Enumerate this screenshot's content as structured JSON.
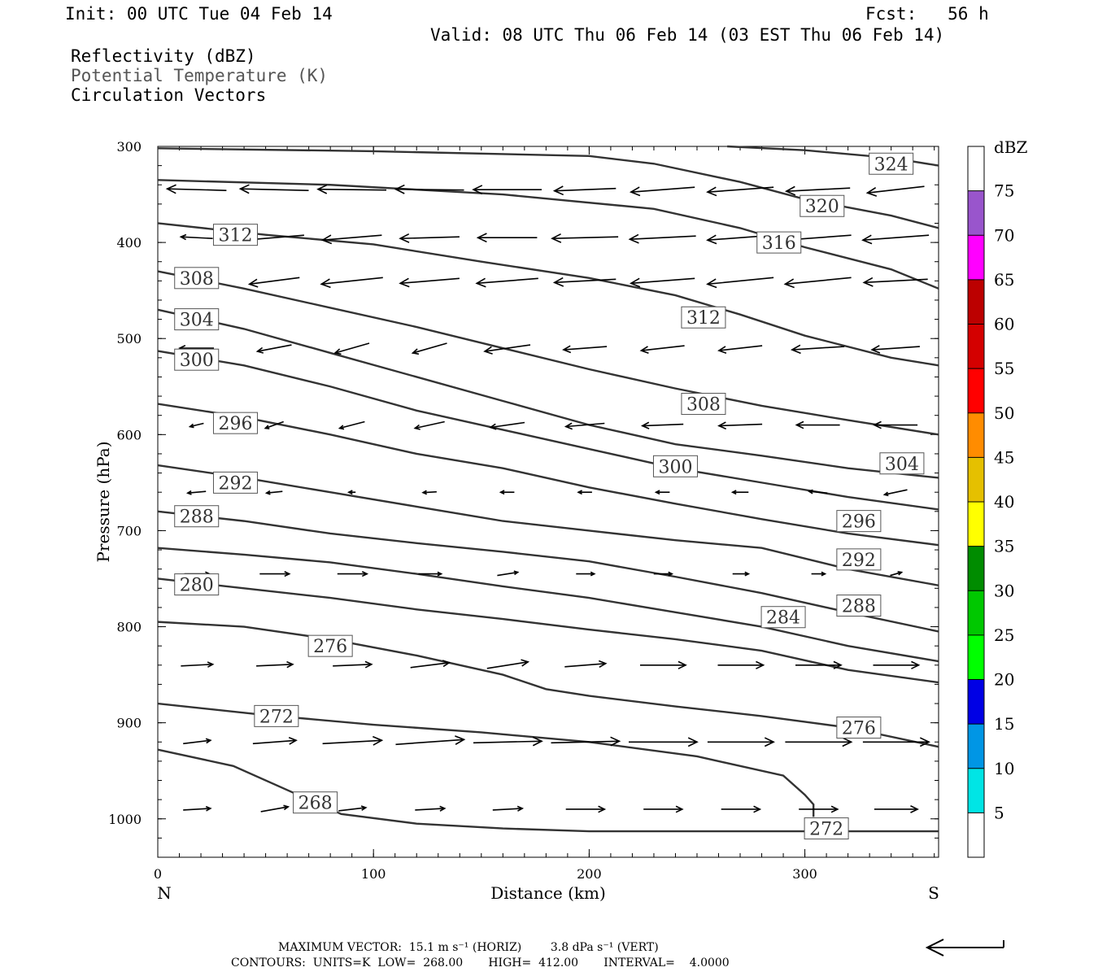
{
  "header": {
    "init": "Init: 00 UTC Tue 04 Feb 14",
    "fcst": "Fcst:   56 h",
    "valid": "Valid: 08 UTC Thu 06 Feb 14 (03 EST Thu 06 Feb 14)",
    "field1": "Reflectivity (dBZ)",
    "field2": "Potential Temperature (K)",
    "field3": "Circulation Vectors"
  },
  "footer": {
    "max_vector": "MAXIMUM VECTOR:  15.1 m s⁻¹ (HORIZ)        3.8 dPa s⁻¹ (VERT)",
    "contours": "CONTOURS:  UNITS=K  LOW=  268.00       HIGH=  412.00       INTERVAL=    4.0000"
  },
  "chart_data": {
    "type": "cross-section",
    "xlabel": "Distance (km)",
    "ylabel": "Pressure (hPa)",
    "xlim": [
      0,
      362
    ],
    "ylim": [
      1040,
      300
    ],
    "x_ticks": [
      0,
      100,
      200,
      300
    ],
    "y_ticks": [
      300,
      400,
      500,
      600,
      700,
      800,
      900,
      1000
    ],
    "left_end_label": "N",
    "right_end_label": "S",
    "colorbar": {
      "title": "dBZ",
      "levels": [
        5,
        10,
        15,
        20,
        25,
        30,
        35,
        40,
        45,
        50,
        55,
        60,
        65,
        70,
        75
      ],
      "colors": [
        "#ffffff",
        "#00e5e5",
        "#0096e5",
        "#0000e5",
        "#00ff00",
        "#00c800",
        "#008c00",
        "#ffff00",
        "#e5c000",
        "#ff8c00",
        "#ff0000",
        "#d40000",
        "#bc0000",
        "#ff00ff",
        "#9955cc",
        "#ffffff"
      ]
    },
    "contours": [
      {
        "level": "324",
        "points": [
          [
            264,
            300
          ],
          [
            300,
            304
          ],
          [
            340,
            312
          ],
          [
            362,
            320
          ]
        ],
        "labels": [
          [
            340,
            318
          ]
        ]
      },
      {
        "level": "320",
        "points": [
          [
            0,
            302
          ],
          [
            100,
            305
          ],
          [
            200,
            310
          ],
          [
            230,
            318
          ],
          [
            270,
            337
          ],
          [
            300,
            355
          ],
          [
            340,
            372
          ],
          [
            362,
            385
          ]
        ],
        "labels": [
          [
            308,
            362
          ]
        ]
      },
      {
        "level": "316",
        "points": [
          [
            0,
            335
          ],
          [
            80,
            340
          ],
          [
            160,
            350
          ],
          [
            230,
            365
          ],
          [
            270,
            385
          ],
          [
            300,
            405
          ],
          [
            340,
            428
          ],
          [
            362,
            448
          ]
        ],
        "labels": [
          [
            288,
            400
          ]
        ]
      },
      {
        "level": "312",
        "points": [
          [
            0,
            380
          ],
          [
            50,
            392
          ],
          [
            100,
            402
          ],
          [
            150,
            420
          ],
          [
            200,
            437
          ],
          [
            240,
            455
          ],
          [
            270,
            475
          ],
          [
            300,
            497
          ],
          [
            340,
            520
          ],
          [
            362,
            528
          ]
        ],
        "labels": [
          [
            36,
            392
          ],
          [
            253,
            478
          ]
        ]
      },
      {
        "level": "308",
        "points": [
          [
            0,
            430
          ],
          [
            40,
            448
          ],
          [
            80,
            468
          ],
          [
            120,
            488
          ],
          [
            160,
            510
          ],
          [
            200,
            532
          ],
          [
            240,
            552
          ],
          [
            280,
            570
          ],
          [
            320,
            585
          ],
          [
            362,
            600
          ]
        ],
        "labels": [
          [
            18,
            437
          ],
          [
            253,
            568
          ]
        ]
      },
      {
        "level": "304",
        "points": [
          [
            0,
            470
          ],
          [
            40,
            490
          ],
          [
            80,
            515
          ],
          [
            120,
            540
          ],
          [
            160,
            565
          ],
          [
            200,
            590
          ],
          [
            240,
            610
          ],
          [
            280,
            622
          ],
          [
            320,
            635
          ],
          [
            362,
            645
          ]
        ],
        "labels": [
          [
            18,
            480
          ],
          [
            345,
            630
          ]
        ]
      },
      {
        "level": "300",
        "points": [
          [
            0,
            513
          ],
          [
            40,
            528
          ],
          [
            80,
            550
          ],
          [
            120,
            575
          ],
          [
            160,
            595
          ],
          [
            200,
            615
          ],
          [
            240,
            635
          ],
          [
            280,
            650
          ],
          [
            320,
            665
          ],
          [
            362,
            678
          ]
        ],
        "labels": [
          [
            18,
            522
          ],
          [
            240,
            633
          ]
        ]
      },
      {
        "level": "296",
        "points": [
          [
            0,
            568
          ],
          [
            40,
            582
          ],
          [
            80,
            600
          ],
          [
            120,
            620
          ],
          [
            160,
            635
          ],
          [
            200,
            655
          ],
          [
            240,
            672
          ],
          [
            280,
            688
          ],
          [
            320,
            703
          ],
          [
            362,
            715
          ]
        ],
        "labels": [
          [
            36,
            588
          ],
          [
            325,
            690
          ]
        ]
      },
      {
        "level": "292",
        "points": [
          [
            0,
            632
          ],
          [
            40,
            645
          ],
          [
            80,
            660
          ],
          [
            120,
            675
          ],
          [
            160,
            690
          ],
          [
            200,
            700
          ],
          [
            240,
            710
          ],
          [
            280,
            718
          ],
          [
            320,
            740
          ],
          [
            362,
            757
          ]
        ],
        "labels": [
          [
            36,
            650
          ],
          [
            325,
            730
          ]
        ]
      },
      {
        "level": "288",
        "points": [
          [
            0,
            680
          ],
          [
            40,
            690
          ],
          [
            80,
            703
          ],
          [
            120,
            713
          ],
          [
            160,
            722
          ],
          [
            200,
            732
          ],
          [
            240,
            748
          ],
          [
            280,
            765
          ],
          [
            320,
            785
          ],
          [
            362,
            805
          ]
        ],
        "labels": [
          [
            18,
            685
          ],
          [
            325,
            778
          ]
        ]
      },
      {
        "level": "284",
        "points": [
          [
            0,
            718
          ],
          [
            40,
            725
          ],
          [
            80,
            733
          ],
          [
            120,
            745
          ],
          [
            160,
            758
          ],
          [
            200,
            770
          ],
          [
            240,
            785
          ],
          [
            280,
            800
          ],
          [
            320,
            820
          ],
          [
            362,
            836
          ]
        ],
        "labels": [
          [
            290,
            790
          ]
        ]
      },
      {
        "level": "280",
        "points": [
          [
            0,
            750
          ],
          [
            40,
            760
          ],
          [
            80,
            770
          ],
          [
            120,
            782
          ],
          [
            160,
            792
          ],
          [
            200,
            803
          ],
          [
            240,
            813
          ],
          [
            280,
            825
          ],
          [
            320,
            845
          ],
          [
            362,
            858
          ]
        ],
        "labels": [
          [
            18,
            756
          ]
        ]
      },
      {
        "level": "276",
        "points": [
          [
            0,
            795
          ],
          [
            40,
            800
          ],
          [
            80,
            813
          ],
          [
            120,
            830
          ],
          [
            160,
            850
          ],
          [
            180,
            865
          ],
          [
            200,
            872
          ],
          [
            240,
            883
          ],
          [
            280,
            893
          ],
          [
            320,
            905
          ],
          [
            362,
            925
          ]
        ],
        "labels": [
          [
            80,
            820
          ],
          [
            325,
            905
          ]
        ]
      },
      {
        "level": "272",
        "points": [
          [
            0,
            880
          ],
          [
            50,
            892
          ],
          [
            100,
            902
          ],
          [
            150,
            910
          ],
          [
            200,
            920
          ],
          [
            250,
            935
          ],
          [
            290,
            955
          ],
          [
            300,
            975
          ],
          [
            304,
            985
          ],
          [
            304,
            998
          ]
        ],
        "labels": [
          [
            55,
            893
          ],
          [
            310,
            1010
          ]
        ]
      },
      {
        "level": "268",
        "points": [
          [
            0,
            928
          ],
          [
            35,
            945
          ],
          [
            60,
            970
          ],
          [
            85,
            995
          ],
          [
            120,
            1005
          ],
          [
            160,
            1010
          ],
          [
            200,
            1013
          ],
          [
            260,
            1013
          ],
          [
            320,
            1013
          ],
          [
            362,
            1013
          ]
        ],
        "labels": [
          [
            73,
            983
          ]
        ]
      }
    ],
    "vectors": [
      {
        "p": 345,
        "u": [
          -2.6,
          -3.0,
          -3.0,
          -3.0,
          -3.0,
          -2.7,
          -2.8,
          -2.9,
          -2.8,
          -2.5
        ],
        "w": [
          0.1,
          0.1,
          0.05,
          0.05,
          0,
          -0.15,
          -0.3,
          -0.3,
          -0.2,
          -0.4
        ]
      },
      {
        "p": 395,
        "u": [
          -1.4,
          -2.6,
          -2.6,
          -2.6,
          -2.6,
          -2.9,
          -2.9,
          -2.9,
          -2.9,
          -2.9
        ],
        "w": [
          0.1,
          -0.3,
          -0.3,
          -0.1,
          0,
          -0.1,
          -0.2,
          -0.3,
          -0.3,
          -0.3
        ]
      },
      {
        "p": 440,
        "u": [
          -1.5,
          -2.2,
          -2.7,
          -2.6,
          -2.7,
          -2.7,
          -2.8,
          -2.9,
          -2.9,
          -2.8
        ],
        "w": [
          -0.3,
          -0.4,
          -0.4,
          -0.3,
          -0.3,
          -0.2,
          -0.3,
          -0.4,
          -0.4,
          -0.2
        ]
      },
      {
        "p": 510,
        "u": [
          -1.5,
          -1.5,
          -1.5,
          -1.5,
          -2.0,
          -1.9,
          -1.9,
          -1.9,
          -2.3,
          -2.1
        ],
        "w": [
          0,
          -0.4,
          -0.6,
          -0.6,
          -0.4,
          -0.2,
          -0.3,
          -0.3,
          -0.2,
          -0.2
        ]
      },
      {
        "p": 590,
        "u": [
          -0.6,
          -0.8,
          -1.1,
          -1.3,
          -1.5,
          -1.7,
          -1.8,
          -1.9,
          -1.9,
          -1.9
        ],
        "w": [
          -0.2,
          -0.4,
          -0.4,
          -0.4,
          -0.3,
          -0.2,
          -0.1,
          -0.1,
          0,
          0
        ]
      },
      {
        "p": 660,
        "u": [
          -0.8,
          -0.7,
          -0.3,
          -0.6,
          -0.6,
          -0.6,
          -0.6,
          -0.7,
          -0.8,
          -1.0
        ],
        "w": [
          -0.1,
          -0.1,
          0,
          -0.05,
          0,
          0,
          0,
          0,
          0.1,
          -0.3
        ]
      },
      {
        "p": 745,
        "u": [
          1.1,
          1.3,
          1.3,
          1.0,
          0.9,
          0.8,
          0.8,
          0.7,
          0.6,
          0.5
        ],
        "w": [
          0,
          0,
          0,
          0,
          0.2,
          0,
          0,
          0,
          0,
          0.2
        ]
      },
      {
        "p": 840,
        "u": [
          1.4,
          1.6,
          1.7,
          1.7,
          1.8,
          1.8,
          2.0,
          2.0,
          2.0,
          2.0
        ],
        "w": [
          0.1,
          0.1,
          0.1,
          0.3,
          0.4,
          0.2,
          0,
          0,
          0,
          0
        ]
      },
      {
        "p": 920,
        "u": [
          1.2,
          1.9,
          2.6,
          3.0,
          3.0,
          3.0,
          3.0,
          2.9,
          2.9,
          2.9
        ],
        "w": [
          0.2,
          0.2,
          0.2,
          0.3,
          0.1,
          0.1,
          0,
          0,
          0,
          0
        ]
      },
      {
        "p": 990,
        "u": [
          1.2,
          1.2,
          1.2,
          1.3,
          1.3,
          1.7,
          1.7,
          1.7,
          1.7,
          1.9
        ],
        "w": [
          0.1,
          0.3,
          0.2,
          0.1,
          0.1,
          0,
          0,
          0,
          0,
          0
        ]
      }
    ]
  }
}
